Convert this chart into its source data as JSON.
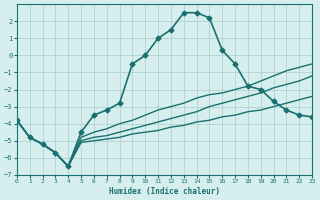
{
  "xlabel": "Humidex (Indice chaleur)",
  "bg_color": "#d6eeee",
  "grid_color": "#aacccc",
  "line_color": "#1a7070",
  "xlim": [
    0,
    23
  ],
  "ylim": [
    -7,
    3
  ],
  "yticks": [
    -7,
    -6,
    -5,
    -4,
    -3,
    -2,
    -1,
    0,
    1,
    2
  ],
  "xticks": [
    0,
    1,
    2,
    3,
    4,
    5,
    6,
    7,
    8,
    9,
    10,
    11,
    12,
    13,
    14,
    15,
    16,
    17,
    18,
    19,
    20,
    21,
    22,
    23
  ],
  "series": [
    {
      "x": [
        0,
        1,
        2,
        3,
        4,
        5,
        6,
        7,
        8,
        9,
        10,
        11,
        12,
        13,
        14,
        15,
        16,
        17,
        18,
        19,
        20,
        21,
        22,
        23
      ],
      "y": [
        -3.8,
        -4.8,
        -5.2,
        -5.7,
        -6.5,
        -4.5,
        -3.5,
        -3.2,
        -2.8,
        -0.5,
        0.0,
        1.0,
        1.5,
        2.5,
        2.5,
        2.2,
        0.3,
        -0.5,
        -1.8,
        -2.0,
        -2.7,
        -3.2,
        -3.5,
        -3.6
      ],
      "marker": "D",
      "markersize": 2.5,
      "linewidth": 1.2,
      "linestyle": "-"
    },
    {
      "x": [
        0,
        1,
        2,
        3,
        4,
        5,
        6,
        7,
        8,
        9,
        10,
        11,
        12,
        13,
        14,
        15,
        16,
        17,
        18,
        19,
        20,
        21,
        22,
        23
      ],
      "y": [
        -3.8,
        -4.8,
        -5.2,
        -5.7,
        -6.5,
        -4.8,
        -4.5,
        -4.3,
        -4.0,
        -3.8,
        -3.5,
        -3.2,
        -3.0,
        -2.8,
        -2.5,
        -2.3,
        -2.2,
        -2.0,
        -1.8,
        -1.5,
        -1.2,
        -0.9,
        -0.7,
        -0.5
      ],
      "marker": null,
      "markersize": 0,
      "linewidth": 1.0,
      "linestyle": "-"
    },
    {
      "x": [
        0,
        1,
        2,
        3,
        4,
        5,
        6,
        7,
        8,
        9,
        10,
        11,
        12,
        13,
        14,
        15,
        16,
        17,
        18,
        19,
        20,
        21,
        22,
        23
      ],
      "y": [
        -3.8,
        -4.8,
        -5.2,
        -5.7,
        -6.5,
        -5.0,
        -4.8,
        -4.7,
        -4.5,
        -4.3,
        -4.1,
        -3.9,
        -3.7,
        -3.5,
        -3.3,
        -3.0,
        -2.8,
        -2.6,
        -2.4,
        -2.2,
        -1.9,
        -1.7,
        -1.5,
        -1.2
      ],
      "marker": null,
      "markersize": 0,
      "linewidth": 1.0,
      "linestyle": "-"
    },
    {
      "x": [
        0,
        1,
        2,
        3,
        4,
        5,
        6,
        7,
        8,
        9,
        10,
        11,
        12,
        13,
        14,
        15,
        16,
        17,
        18,
        19,
        20,
        21,
        22,
        23
      ],
      "y": [
        -3.8,
        -4.8,
        -5.2,
        -5.7,
        -6.5,
        -5.1,
        -5.0,
        -4.9,
        -4.8,
        -4.6,
        -4.5,
        -4.4,
        -4.2,
        -4.1,
        -3.9,
        -3.8,
        -3.6,
        -3.5,
        -3.3,
        -3.2,
        -3.0,
        -2.8,
        -2.6,
        -2.4
      ],
      "marker": null,
      "markersize": 0,
      "linewidth": 1.0,
      "linestyle": "-"
    }
  ]
}
